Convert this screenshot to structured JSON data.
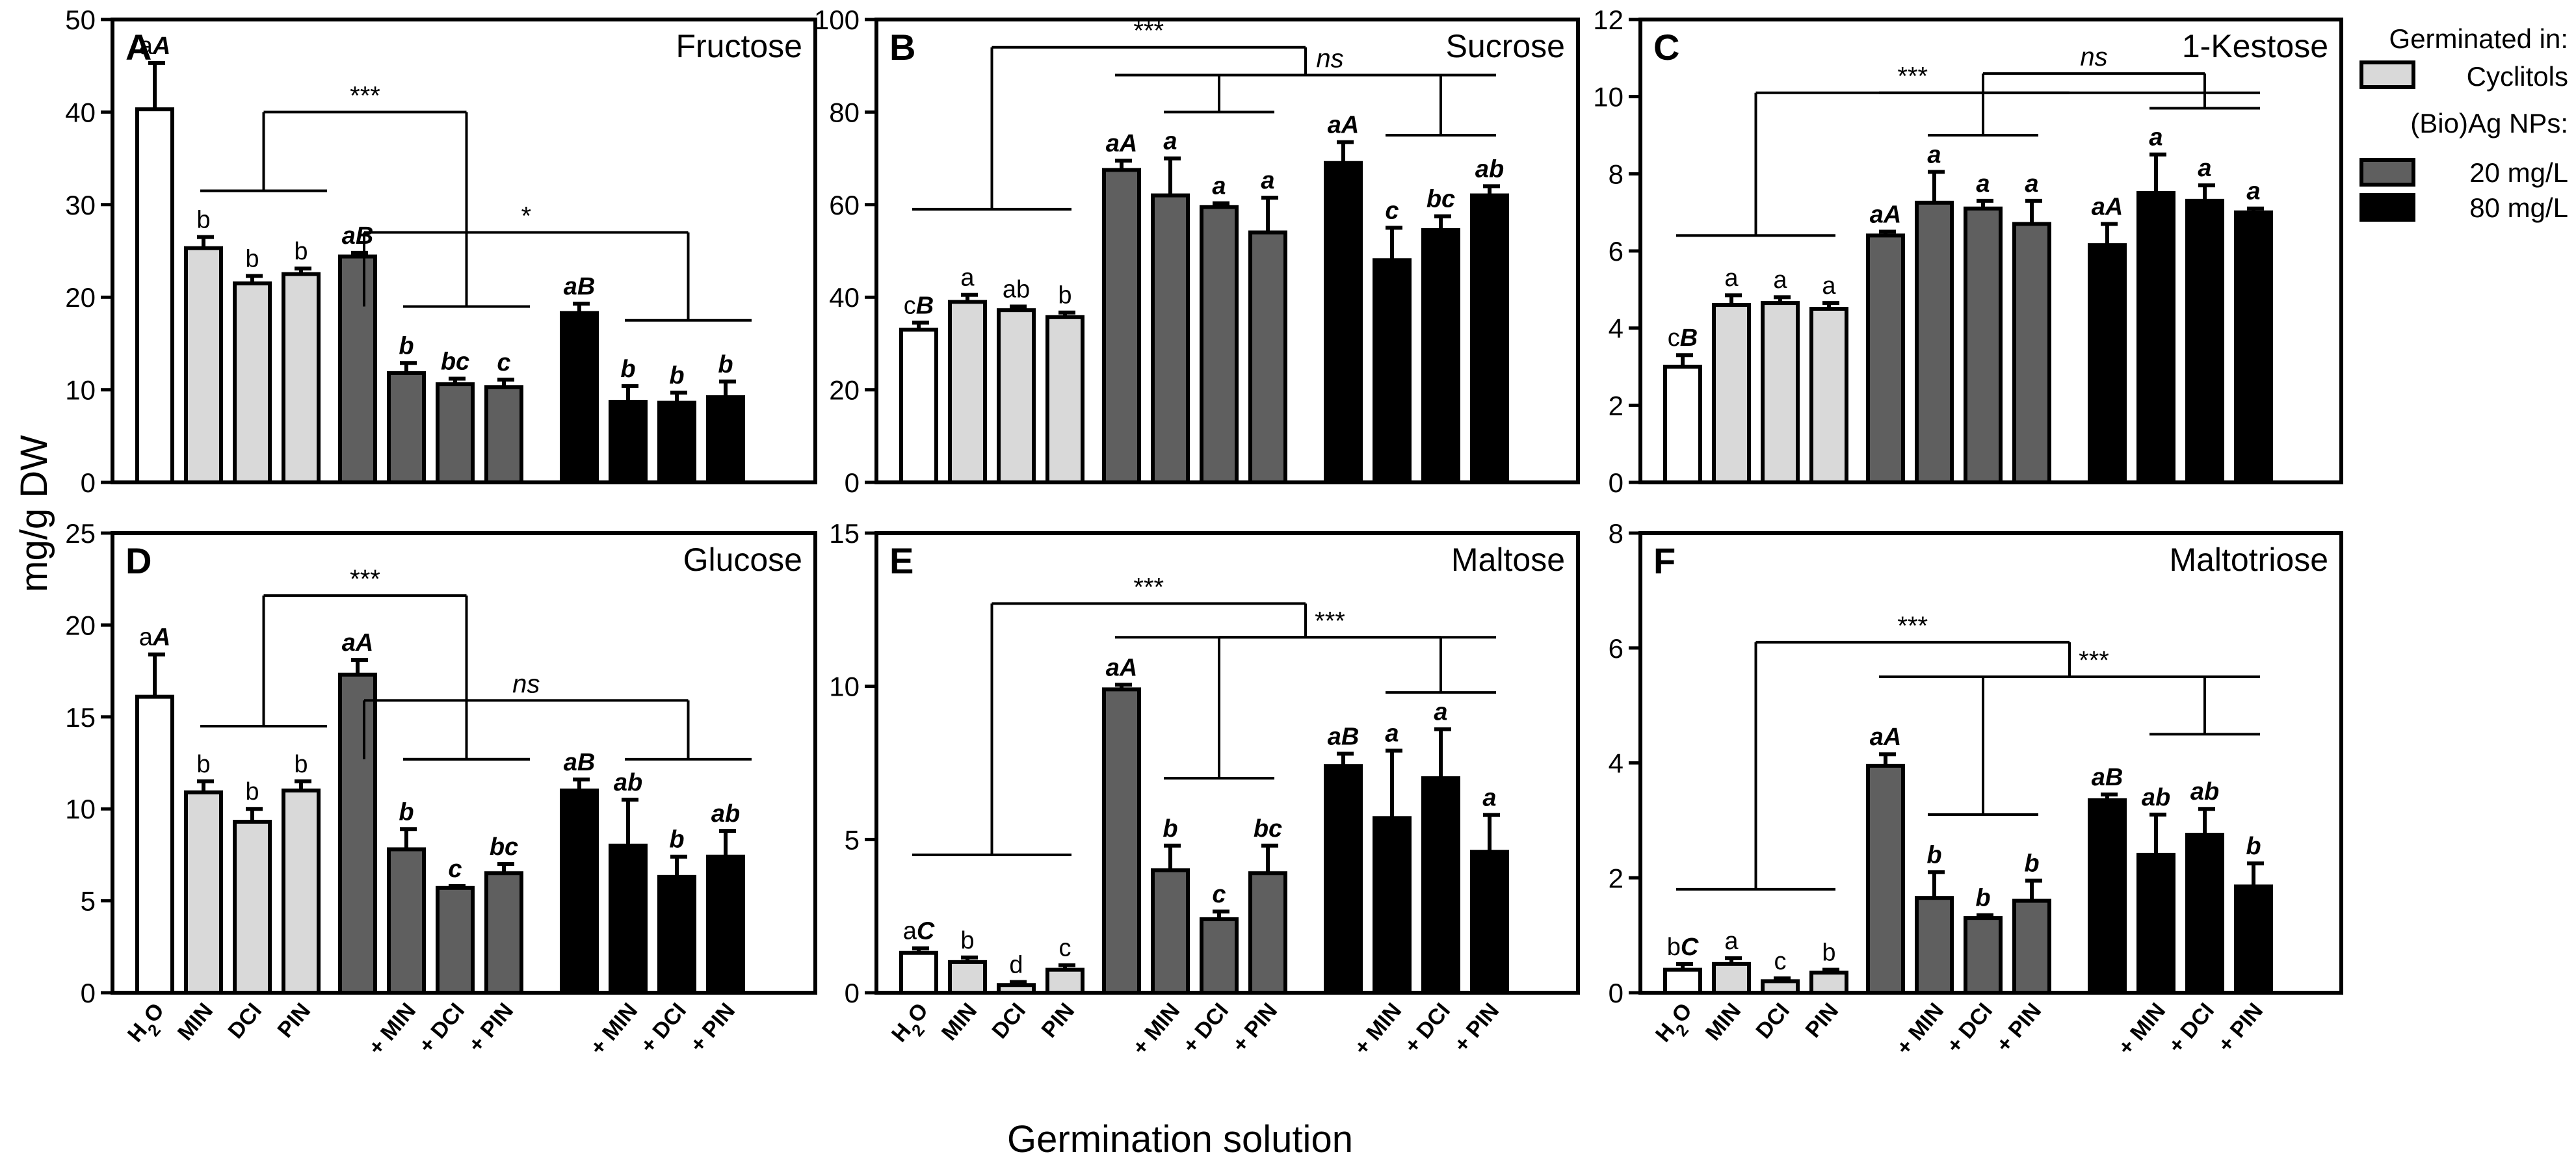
{
  "figure": {
    "y_axis_label": "mg/g DW",
    "x_axis_label": "Germination solution",
    "legend": {
      "header1": "Germinated in:",
      "item1": "Cyclitols",
      "header2": "(Bio)Ag NPs:",
      "item2": "20 mg/L",
      "item3": "80 mg/L"
    },
    "group_tick_labels": {
      "control": [
        "H2O",
        "MIN",
        "DCI",
        "PIN"
      ],
      "np": [
        "+ MIN",
        "+ DCI",
        "+ PIN"
      ]
    }
  },
  "colors": {
    "h2o": "#ffffff",
    "cyclitol": "#d9d9d9",
    "np20": "#5f5f5f",
    "np80": "#000000",
    "axis": "#000000"
  },
  "chart_data": [
    {
      "panel": "A",
      "title": "Fructose",
      "type": "bar",
      "ylim": [
        0,
        50
      ],
      "yticks": [
        0,
        10,
        20,
        30,
        40,
        50
      ],
      "ylabel": "mg/g DW",
      "categories": [
        "H2O",
        "MIN",
        "DCI",
        "PIN",
        "20 mg/L",
        "20 mg/L + MIN",
        "20 mg/L + DCI",
        "20 mg/L + PIN",
        "80 mg/L",
        "80 mg/L + MIN",
        "80 mg/L + DCI",
        "80 mg/L + PIN"
      ],
      "values": [
        40.3,
        25.3,
        21.5,
        22.5,
        24.4,
        11.8,
        10.6,
        10.3,
        18.3,
        8.7,
        8.6,
        9.2
      ],
      "errors": [
        5.0,
        1.2,
        0.8,
        0.6,
        0.4,
        1.1,
        0.6,
        0.8,
        1.0,
        1.7,
        1.1,
        1.7
      ],
      "letters": [
        "aA",
        "b",
        "b",
        "b",
        "aB",
        "b",
        "bc",
        "c",
        "aB",
        "b",
        "b",
        "b"
      ],
      "significance": [
        {
          "label": "***",
          "from": 0,
          "to1": [
            1,
            3
          ],
          "to2": [
            5,
            7
          ],
          "y": 40,
          "y_sub": 31.5,
          "y_sub2": 19
        },
        {
          "label": "*",
          "from": 4,
          "to1": [
            5,
            7
          ],
          "to2": [
            9,
            11
          ],
          "y": 27,
          "y_sub": 19,
          "y_sub2": 17.5
        }
      ]
    },
    {
      "panel": "B",
      "title": "Sucrose",
      "type": "bar",
      "ylim": [
        0,
        100
      ],
      "yticks": [
        0,
        20,
        40,
        60,
        80,
        100
      ],
      "ylabel": "mg/g DW",
      "categories": [
        "H2O",
        "MIN",
        "DCI",
        "PIN",
        "20 mg/L",
        "20 mg/L + MIN",
        "20 mg/L + DCI",
        "20 mg/L + PIN",
        "80 mg/L",
        "80 mg/L + MIN",
        "80 mg/L + DCI",
        "80 mg/L + PIN"
      ],
      "values": [
        33,
        39,
        37.2,
        35.7,
        67.5,
        62,
        59.5,
        54,
        69,
        48,
        54.5,
        62
      ],
      "errors": [
        1.5,
        1.5,
        0.8,
        1.0,
        2.0,
        8.0,
        0.8,
        7.5,
        4.5,
        7.0,
        3.0,
        2.0
      ],
      "letters": [
        "cB",
        "a",
        "ab",
        "b",
        "aA",
        "a",
        "a",
        "a",
        "aA",
        "c",
        "bc",
        "ab"
      ],
      "significance": [
        {
          "label": "***",
          "top": 94,
          "group1": [
            0,
            3
          ],
          "y1": 59,
          "group2": [
            4,
            11
          ],
          "y2": 88
        },
        {
          "label": "ns",
          "top": 88,
          "group1": [
            5,
            7
          ],
          "y1": 80,
          "group2": [
            9,
            11
          ],
          "y2": 75
        }
      ]
    },
    {
      "panel": "C",
      "title": "1-Kestose",
      "type": "bar",
      "ylim": [
        0,
        12
      ],
      "yticks": [
        0,
        2,
        4,
        6,
        8,
        10,
        12
      ],
      "ylabel": "mg/g DW",
      "categories": [
        "H2O",
        "MIN",
        "DCI",
        "PIN",
        "20 mg/L",
        "20 mg/L + MIN",
        "20 mg/L + DCI",
        "20 mg/L + PIN",
        "80 mg/L",
        "80 mg/L + MIN",
        "80 mg/L + DCI",
        "80 mg/L + PIN"
      ],
      "values": [
        3.0,
        4.6,
        4.65,
        4.5,
        6.4,
        7.25,
        7.1,
        6.7,
        6.15,
        7.5,
        7.3,
        7.0
      ],
      "errors": [
        0.3,
        0.25,
        0.15,
        0.15,
        0.1,
        0.8,
        0.2,
        0.6,
        0.55,
        1.0,
        0.4,
        0.1
      ],
      "letters": [
        "cB",
        "a",
        "a",
        "a",
        "aA",
        "a",
        "a",
        "a",
        "aA",
        "a",
        "a",
        "a"
      ],
      "significance": [
        {
          "label": "***",
          "top": 10.1,
          "group1": [
            0,
            3
          ],
          "y1": 6.4,
          "group2": [
            4,
            11
          ],
          "y2": 10.1
        },
        {
          "label": "ns",
          "top": 10.6,
          "group1": [
            5,
            7
          ],
          "y1": 9.0,
          "group2": [
            9,
            11
          ],
          "y2": 9.7
        }
      ]
    },
    {
      "panel": "D",
      "title": "Glucose",
      "type": "bar",
      "ylim": [
        0,
        25
      ],
      "yticks": [
        0,
        5,
        10,
        15,
        20,
        25
      ],
      "ylabel": "mg/g DW",
      "categories": [
        "H2O",
        "MIN",
        "DCI",
        "PIN",
        "20 mg/L",
        "20 mg/L + MIN",
        "20 mg/L + DCI",
        "20 mg/L + PIN",
        "80 mg/L",
        "80 mg/L + MIN",
        "80 mg/L + DCI",
        "80 mg/L + PIN"
      ],
      "values": [
        16.1,
        10.9,
        9.3,
        11.0,
        17.3,
        7.8,
        5.7,
        6.5,
        11.0,
        8.0,
        6.3,
        7.4
      ],
      "errors": [
        2.3,
        0.6,
        0.7,
        0.5,
        0.8,
        1.1,
        0.1,
        0.5,
        0.6,
        2.5,
        1.1,
        1.4
      ],
      "letters": [
        "aA",
        "b",
        "b",
        "b",
        "aA",
        "b",
        "c",
        "bc",
        "aB",
        "ab",
        "b",
        "ab"
      ],
      "significance": [
        {
          "label": "***",
          "from": 0,
          "to1": [
            1,
            3
          ],
          "to2": [
            5,
            7
          ],
          "y": 21.6,
          "y_sub": 14.5,
          "y_sub2": 12.7
        },
        {
          "label": "ns",
          "from": 4,
          "to1": [
            5,
            7
          ],
          "to2": [
            9,
            11
          ],
          "y": 15.9,
          "y_sub": 12.7,
          "y_sub2": 12.7
        }
      ]
    },
    {
      "panel": "E",
      "title": "Maltose",
      "type": "bar",
      "ylim": [
        0,
        15
      ],
      "yticks": [
        0,
        5,
        10,
        15
      ],
      "ylabel": "mg/g DW",
      "categories": [
        "H2O",
        "MIN",
        "DCI",
        "PIN",
        "20 mg/L",
        "20 mg/L + MIN",
        "20 mg/L + DCI",
        "20 mg/L + PIN",
        "80 mg/L",
        "80 mg/L + MIN",
        "80 mg/L + DCI",
        "80 mg/L + PIN"
      ],
      "values": [
        1.3,
        1.0,
        0.25,
        0.75,
        9.9,
        4.0,
        2.4,
        3.9,
        7.4,
        5.7,
        7.0,
        4.6
      ],
      "errors": [
        0.15,
        0.15,
        0.1,
        0.15,
        0.15,
        0.8,
        0.25,
        0.9,
        0.4,
        2.2,
        1.6,
        1.2
      ],
      "letters": [
        "aC",
        "b",
        "d",
        "c",
        "aA",
        "b",
        "c",
        "bc",
        "aB",
        "a",
        "a",
        "a"
      ],
      "significance": [
        {
          "label": "***",
          "top": 12.7,
          "group1": [
            0,
            3
          ],
          "y1": 4.5,
          "group2": [
            4,
            11
          ],
          "y2": 11.6
        },
        {
          "label": "***",
          "top": 11.6,
          "group1": [
            5,
            7
          ],
          "y1": 7.0,
          "group2": [
            9,
            11
          ],
          "y2": 9.8
        }
      ]
    },
    {
      "panel": "F",
      "title": "Maltotriose",
      "type": "bar",
      "ylim": [
        0,
        8
      ],
      "yticks": [
        0,
        2,
        4,
        6,
        8
      ],
      "ylabel": "mg/g DW",
      "categories": [
        "H2O",
        "MIN",
        "DCI",
        "PIN",
        "20 mg/L",
        "20 mg/L + MIN",
        "20 mg/L + DCI",
        "20 mg/L + PIN",
        "80 mg/L",
        "80 mg/L + MIN",
        "80 mg/L + DCI",
        "80 mg/L + PIN"
      ],
      "values": [
        0.4,
        0.5,
        0.2,
        0.35,
        3.95,
        1.65,
        1.3,
        1.6,
        3.35,
        2.4,
        2.75,
        1.85
      ],
      "errors": [
        0.1,
        0.1,
        0.05,
        0.05,
        0.2,
        0.45,
        0.05,
        0.35,
        0.1,
        0.7,
        0.45,
        0.4
      ],
      "letters": [
        "bC",
        "a",
        "c",
        "b",
        "aA",
        "b",
        "b",
        "b",
        "aB",
        "ab",
        "ab",
        "b"
      ],
      "significance": [
        {
          "label": "***",
          "top": 6.1,
          "group1": [
            0,
            3
          ],
          "y1": 1.8,
          "group2": [
            4,
            11
          ],
          "y2": 5.5
        },
        {
          "label": "***",
          "top": 5.5,
          "group1": [
            5,
            7
          ],
          "y1": 3.1,
          "group2": [
            9,
            11
          ],
          "y2": 4.5
        }
      ]
    }
  ]
}
